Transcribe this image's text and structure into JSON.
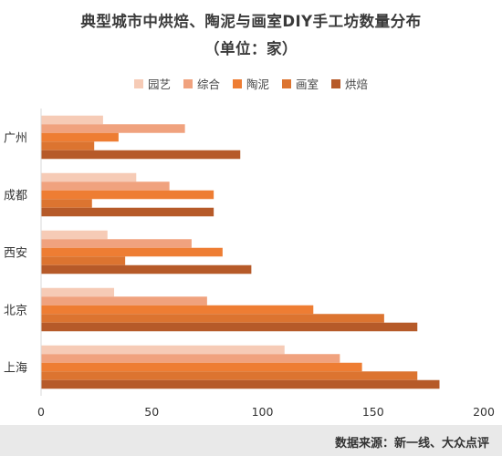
{
  "source_label": "数据来源：新一线、大众点评",
  "colors": {
    "园艺": "#f6cbb6",
    "综合": "#f0a27e",
    "陶泥": "#ee7d33",
    "画室": "#dc7430",
    "烘焙": "#b65a29"
  },
  "chart_data": {
    "type": "bar",
    "orientation": "horizontal",
    "title": "典型城市中烘焙、陶泥与画室DIY手工坊数量分布",
    "subtitle": "（单位：家）",
    "categories": [
      "广州",
      "成都",
      "西安",
      "北京",
      "上海"
    ],
    "series": [
      {
        "name": "园艺",
        "values": [
          28,
          43,
          30,
          33,
          110
        ]
      },
      {
        "name": "综合",
        "values": [
          65,
          58,
          68,
          75,
          135
        ]
      },
      {
        "name": "陶泥",
        "values": [
          35,
          78,
          82,
          123,
          145
        ]
      },
      {
        "name": "画室",
        "values": [
          24,
          23,
          38,
          155,
          170
        ]
      },
      {
        "name": "烘焙",
        "values": [
          90,
          78,
          95,
          170,
          180
        ]
      }
    ],
    "xlim": [
      0,
      200
    ],
    "xticks": [
      0,
      50,
      100,
      150,
      200
    ],
    "grid": false,
    "legend_position": "top"
  }
}
